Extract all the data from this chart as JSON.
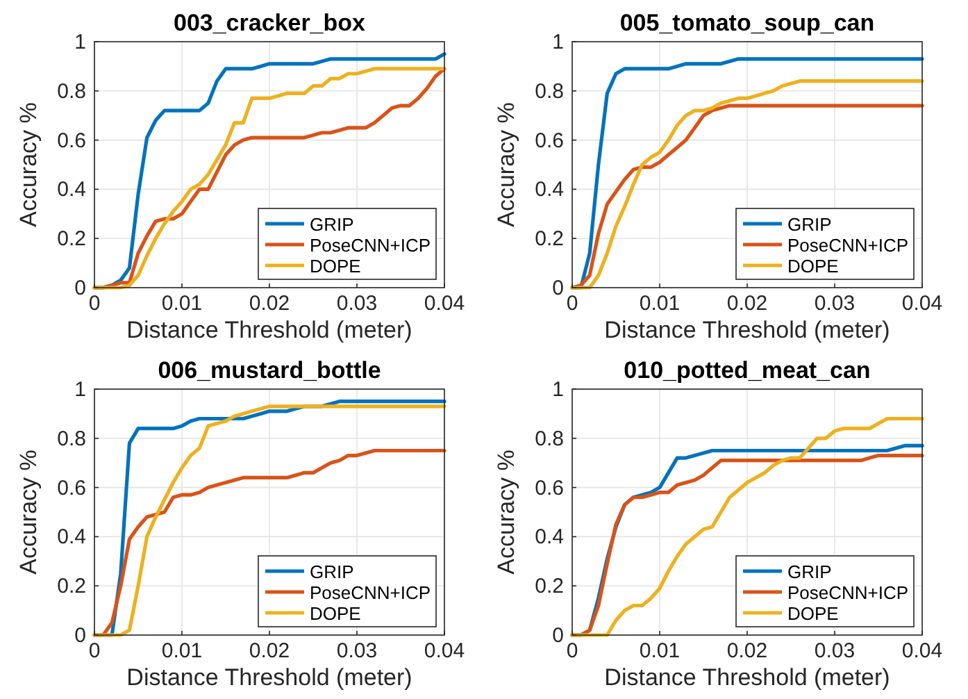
{
  "chart_data": [
    {
      "type": "line",
      "title": "003_cracker_box",
      "xlabel": "Distance Threshold (meter)",
      "ylabel": "Accuracy %",
      "x": [
        0,
        0.001,
        0.002,
        0.003,
        0.004,
        0.005,
        0.006,
        0.007,
        0.008,
        0.009,
        0.01,
        0.011,
        0.012,
        0.013,
        0.014,
        0.015,
        0.016,
        0.017,
        0.018,
        0.019,
        0.02,
        0.021,
        0.022,
        0.023,
        0.024,
        0.025,
        0.026,
        0.027,
        0.028,
        0.029,
        0.03,
        0.031,
        0.032,
        0.033,
        0.034,
        0.035,
        0.036,
        0.037,
        0.038,
        0.039,
        0.04
      ],
      "xlim": [
        0,
        0.04
      ],
      "ylim": [
        0,
        1
      ],
      "xticks": [
        0,
        0.01,
        0.02,
        0.03,
        0.04
      ],
      "yticks": [
        0,
        0.2,
        0.4,
        0.6,
        0.8,
        1
      ],
      "grid": true,
      "legend": "bottom right",
      "line_style": "solid",
      "series": [
        {
          "name": "GRIP",
          "color": "#0072bd",
          "values": [
            0,
            0,
            0.01,
            0.03,
            0.08,
            0.38,
            0.61,
            0.68,
            0.72,
            0.72,
            0.72,
            0.72,
            0.72,
            0.75,
            0.84,
            0.89,
            0.89,
            0.89,
            0.89,
            0.9,
            0.91,
            0.91,
            0.91,
            0.91,
            0.91,
            0.91,
            0.92,
            0.93,
            0.93,
            0.93,
            0.93,
            0.93,
            0.93,
            0.93,
            0.93,
            0.93,
            0.93,
            0.93,
            0.93,
            0.93,
            0.95
          ]
        },
        {
          "name": "PoseCNN+ICP",
          "color": "#d95319",
          "values": [
            0,
            0,
            0.01,
            0.02,
            0.02,
            0.14,
            0.21,
            0.27,
            0.28,
            0.28,
            0.3,
            0.35,
            0.4,
            0.4,
            0.47,
            0.54,
            0.58,
            0.6,
            0.61,
            0.61,
            0.61,
            0.61,
            0.61,
            0.61,
            0.61,
            0.62,
            0.63,
            0.63,
            0.64,
            0.65,
            0.65,
            0.65,
            0.67,
            0.7,
            0.73,
            0.74,
            0.74,
            0.77,
            0.81,
            0.86,
            0.89
          ]
        },
        {
          "name": "DOPE",
          "color": "#edb120",
          "values": [
            0,
            0,
            0,
            0,
            0.01,
            0.05,
            0.13,
            0.2,
            0.26,
            0.31,
            0.35,
            0.4,
            0.42,
            0.46,
            0.52,
            0.58,
            0.67,
            0.67,
            0.77,
            0.77,
            0.77,
            0.78,
            0.79,
            0.79,
            0.79,
            0.82,
            0.82,
            0.85,
            0.85,
            0.87,
            0.87,
            0.88,
            0.89,
            0.89,
            0.89,
            0.89,
            0.89,
            0.89,
            0.89,
            0.89,
            0.89
          ]
        }
      ]
    },
    {
      "type": "line",
      "title": "005_tomato_soup_can",
      "xlabel": "Distance Threshold (meter)",
      "ylabel": "Accuracy %",
      "x": [
        0,
        0.001,
        0.002,
        0.003,
        0.004,
        0.005,
        0.006,
        0.007,
        0.008,
        0.009,
        0.01,
        0.011,
        0.012,
        0.013,
        0.014,
        0.015,
        0.016,
        0.017,
        0.018,
        0.019,
        0.02,
        0.021,
        0.022,
        0.023,
        0.024,
        0.025,
        0.026,
        0.027,
        0.028,
        0.029,
        0.03,
        0.031,
        0.032,
        0.033,
        0.034,
        0.035,
        0.036,
        0.037,
        0.038,
        0.039,
        0.04
      ],
      "xlim": [
        0,
        0.04
      ],
      "ylim": [
        0,
        1
      ],
      "xticks": [
        0,
        0.01,
        0.02,
        0.03,
        0.04
      ],
      "yticks": [
        0,
        0.2,
        0.4,
        0.6,
        0.8,
        1
      ],
      "grid": true,
      "legend": "bottom right",
      "line_style": "solid",
      "series": [
        {
          "name": "GRIP",
          "color": "#0072bd",
          "values": [
            0,
            0,
            0.14,
            0.5,
            0.79,
            0.87,
            0.89,
            0.89,
            0.89,
            0.89,
            0.89,
            0.89,
            0.9,
            0.91,
            0.91,
            0.91,
            0.91,
            0.91,
            0.92,
            0.93,
            0.93,
            0.93,
            0.93,
            0.93,
            0.93,
            0.93,
            0.93,
            0.93,
            0.93,
            0.93,
            0.93,
            0.93,
            0.93,
            0.93,
            0.93,
            0.93,
            0.93,
            0.93,
            0.93,
            0.93,
            0.93
          ]
        },
        {
          "name": "PoseCNN+ICP",
          "color": "#d95319",
          "values": [
            0,
            0.01,
            0.05,
            0.22,
            0.34,
            0.39,
            0.44,
            0.48,
            0.49,
            0.49,
            0.51,
            0.54,
            0.57,
            0.6,
            0.65,
            0.7,
            0.72,
            0.73,
            0.74,
            0.74,
            0.74,
            0.74,
            0.74,
            0.74,
            0.74,
            0.74,
            0.74,
            0.74,
            0.74,
            0.74,
            0.74,
            0.74,
            0.74,
            0.74,
            0.74,
            0.74,
            0.74,
            0.74,
            0.74,
            0.74,
            0.74
          ]
        },
        {
          "name": "DOPE",
          "color": "#edb120",
          "values": [
            0,
            0,
            0,
            0.05,
            0.14,
            0.25,
            0.33,
            0.42,
            0.5,
            0.53,
            0.55,
            0.6,
            0.66,
            0.7,
            0.72,
            0.72,
            0.73,
            0.75,
            0.76,
            0.77,
            0.77,
            0.78,
            0.79,
            0.8,
            0.82,
            0.83,
            0.84,
            0.84,
            0.84,
            0.84,
            0.84,
            0.84,
            0.84,
            0.84,
            0.84,
            0.84,
            0.84,
            0.84,
            0.84,
            0.84,
            0.84
          ]
        }
      ]
    },
    {
      "type": "line",
      "title": "006_mustard_bottle",
      "xlabel": "Distance Threshold (meter)",
      "ylabel": "Accuracy %",
      "x": [
        0,
        0.001,
        0.002,
        0.003,
        0.004,
        0.005,
        0.006,
        0.007,
        0.008,
        0.009,
        0.01,
        0.011,
        0.012,
        0.013,
        0.014,
        0.015,
        0.016,
        0.017,
        0.018,
        0.019,
        0.02,
        0.021,
        0.022,
        0.023,
        0.024,
        0.025,
        0.026,
        0.027,
        0.028,
        0.029,
        0.03,
        0.031,
        0.032,
        0.033,
        0.034,
        0.035,
        0.036,
        0.037,
        0.038,
        0.039,
        0.04
      ],
      "xlim": [
        0,
        0.04
      ],
      "ylim": [
        0,
        1
      ],
      "xticks": [
        0,
        0.01,
        0.02,
        0.03,
        0.04
      ],
      "yticks": [
        0,
        0.2,
        0.4,
        0.6,
        0.8,
        1
      ],
      "grid": true,
      "legend": "bottom right",
      "line_style": "solid",
      "series": [
        {
          "name": "GRIP",
          "color": "#0072bd",
          "values": [
            0,
            0,
            0,
            0.25,
            0.78,
            0.84,
            0.84,
            0.84,
            0.84,
            0.84,
            0.85,
            0.87,
            0.88,
            0.88,
            0.88,
            0.88,
            0.88,
            0.88,
            0.89,
            0.9,
            0.91,
            0.91,
            0.91,
            0.92,
            0.93,
            0.93,
            0.93,
            0.94,
            0.95,
            0.95,
            0.95,
            0.95,
            0.95,
            0.95,
            0.95,
            0.95,
            0.95,
            0.95,
            0.95,
            0.95,
            0.95
          ]
        },
        {
          "name": "PoseCNN+ICP",
          "color": "#d95319",
          "values": [
            0,
            0,
            0.05,
            0.2,
            0.39,
            0.44,
            0.48,
            0.49,
            0.5,
            0.56,
            0.57,
            0.57,
            0.58,
            0.6,
            0.61,
            0.62,
            0.63,
            0.64,
            0.64,
            0.64,
            0.64,
            0.64,
            0.64,
            0.65,
            0.66,
            0.66,
            0.68,
            0.7,
            0.71,
            0.73,
            0.73,
            0.74,
            0.75,
            0.75,
            0.75,
            0.75,
            0.75,
            0.75,
            0.75,
            0.75,
            0.75
          ]
        },
        {
          "name": "DOPE",
          "color": "#edb120",
          "values": [
            0,
            0,
            0,
            0,
            0.02,
            0.2,
            0.4,
            0.48,
            0.55,
            0.62,
            0.68,
            0.73,
            0.76,
            0.85,
            0.86,
            0.87,
            0.89,
            0.9,
            0.91,
            0.92,
            0.93,
            0.93,
            0.93,
            0.93,
            0.93,
            0.93,
            0.93,
            0.93,
            0.93,
            0.93,
            0.93,
            0.93,
            0.93,
            0.93,
            0.93,
            0.93,
            0.93,
            0.93,
            0.93,
            0.93,
            0.93
          ]
        }
      ]
    },
    {
      "type": "line",
      "title": "010_potted_meat_can",
      "xlabel": "Distance Threshold (meter)",
      "ylabel": "Accuracy %",
      "x": [
        0,
        0.001,
        0.002,
        0.003,
        0.004,
        0.005,
        0.006,
        0.007,
        0.008,
        0.009,
        0.01,
        0.011,
        0.012,
        0.013,
        0.014,
        0.015,
        0.016,
        0.017,
        0.018,
        0.019,
        0.02,
        0.021,
        0.022,
        0.023,
        0.024,
        0.025,
        0.026,
        0.027,
        0.028,
        0.029,
        0.03,
        0.031,
        0.032,
        0.033,
        0.034,
        0.035,
        0.036,
        0.037,
        0.038,
        0.039,
        0.04
      ],
      "xlim": [
        0,
        0.04
      ],
      "ylim": [
        0,
        1
      ],
      "xticks": [
        0,
        0.01,
        0.02,
        0.03,
        0.04
      ],
      "yticks": [
        0,
        0.2,
        0.4,
        0.6,
        0.8,
        1
      ],
      "grid": true,
      "legend": "bottom right",
      "line_style": "solid",
      "series": [
        {
          "name": "GRIP",
          "color": "#0072bd",
          "values": [
            0,
            0,
            0.02,
            0.15,
            0.31,
            0.44,
            0.53,
            0.56,
            0.57,
            0.58,
            0.6,
            0.66,
            0.72,
            0.72,
            0.73,
            0.74,
            0.75,
            0.75,
            0.75,
            0.75,
            0.75,
            0.75,
            0.75,
            0.75,
            0.75,
            0.75,
            0.75,
            0.75,
            0.75,
            0.75,
            0.75,
            0.75,
            0.75,
            0.75,
            0.75,
            0.75,
            0.75,
            0.76,
            0.77,
            0.77,
            0.77
          ]
        },
        {
          "name": "PoseCNN+ICP",
          "color": "#d95319",
          "values": [
            0,
            0,
            0.02,
            0.12,
            0.29,
            0.45,
            0.53,
            0.56,
            0.56,
            0.57,
            0.58,
            0.58,
            0.61,
            0.62,
            0.63,
            0.65,
            0.68,
            0.71,
            0.71,
            0.71,
            0.71,
            0.71,
            0.71,
            0.71,
            0.71,
            0.71,
            0.71,
            0.71,
            0.71,
            0.71,
            0.71,
            0.71,
            0.71,
            0.71,
            0.72,
            0.73,
            0.73,
            0.73,
            0.73,
            0.73,
            0.73
          ]
        },
        {
          "name": "DOPE",
          "color": "#edb120",
          "values": [
            0,
            0,
            0,
            0,
            0,
            0.06,
            0.1,
            0.12,
            0.12,
            0.15,
            0.19,
            0.26,
            0.32,
            0.37,
            0.4,
            0.43,
            0.44,
            0.5,
            0.56,
            0.59,
            0.62,
            0.64,
            0.66,
            0.69,
            0.71,
            0.72,
            0.72,
            0.76,
            0.8,
            0.8,
            0.83,
            0.84,
            0.84,
            0.84,
            0.84,
            0.86,
            0.88,
            0.88,
            0.88,
            0.88,
            0.88
          ]
        }
      ]
    }
  ]
}
